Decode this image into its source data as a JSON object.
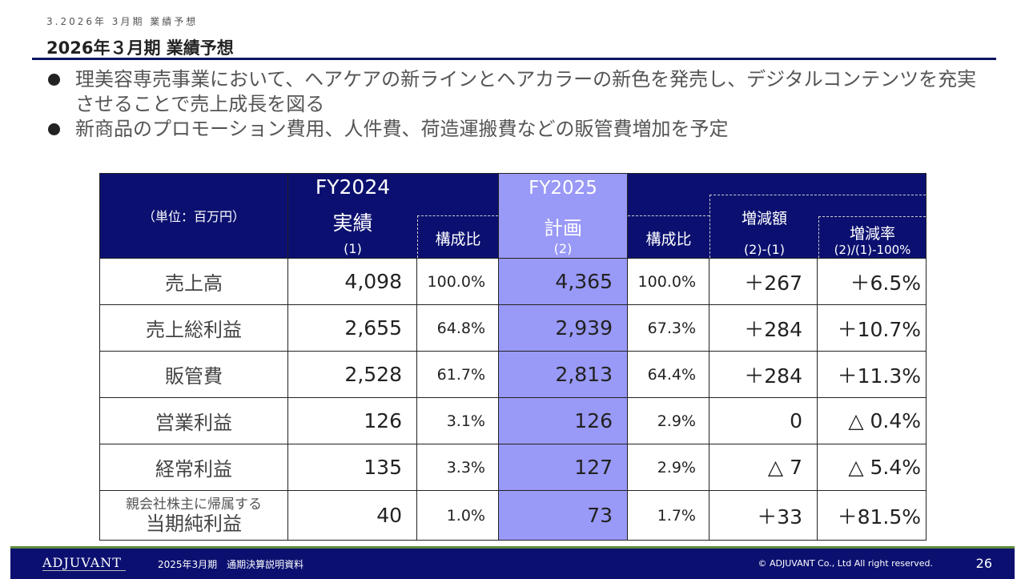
{
  "header": {
    "section_label": "3.2026年 3月期 業績予想",
    "title": "2026年３月期 業績予想"
  },
  "bullets": [
    "理美容専売事業において、ヘアケアの新ラインとヘアカラーの新色を発売し、デジタルコンテンツを充実させることで売上成長を図る",
    "新商品のプロモーション費用、人件費、荷造運搬費などの販管費増加を予定"
  ],
  "table": {
    "unit": "（単位：百万円）",
    "fy2024": {
      "year": "FY2024",
      "kind": "実績",
      "tag": "(1)"
    },
    "fy2025": {
      "year": "FY2025",
      "kind": "計画",
      "tag": "(2)"
    },
    "ratio_header": "構成比",
    "change_amount": {
      "label": "増減額",
      "formula": "(2)-(1)"
    },
    "change_rate": {
      "label": "増減率",
      "formula": "(2)/(1)-100%"
    },
    "rows": [
      {
        "label": "売上高",
        "fy2024": "4,098",
        "fy2024_ratio": "100.0%",
        "fy2025": "4,365",
        "fy2025_ratio": "100.0%",
        "change": "＋267",
        "rate": "＋6.5%"
      },
      {
        "label": "売上総利益",
        "fy2024": "2,655",
        "fy2024_ratio": "64.8%",
        "fy2025": "2,939",
        "fy2025_ratio": "67.3%",
        "change": "＋284",
        "rate": "＋10.7%"
      },
      {
        "label": "販管費",
        "fy2024": "2,528",
        "fy2024_ratio": "61.7%",
        "fy2025": "2,813",
        "fy2025_ratio": "64.4%",
        "change": "＋284",
        "rate": "＋11.3%"
      },
      {
        "label": "営業利益",
        "fy2024": "126",
        "fy2024_ratio": "3.1%",
        "fy2025": "126",
        "fy2025_ratio": "2.9%",
        "change": "0",
        "rate": "△ 0.4%"
      },
      {
        "label": "経常利益",
        "fy2024": "135",
        "fy2024_ratio": "3.3%",
        "fy2025": "127",
        "fy2025_ratio": "2.9%",
        "change": "△ 7",
        "rate": "△ 5.4%"
      },
      {
        "label_small": "親会社株主に帰属する",
        "label": "当期純利益",
        "fy2024": "40",
        "fy2024_ratio": "1.0%",
        "fy2025": "73",
        "fy2025_ratio": "1.7%",
        "change": "＋33",
        "rate": "＋81.5%"
      }
    ]
  },
  "footer": {
    "logo": "ADJUVANT",
    "document": "2025年3月期　通期決算説明資料",
    "copyright": "© ADJUVANT Co., Ltd All right reserved.",
    "page_number": "26"
  },
  "colors": {
    "navy": "#0b1070",
    "plan_highlight": "#9999f7",
    "footer_accent": "#5e8a3a"
  }
}
